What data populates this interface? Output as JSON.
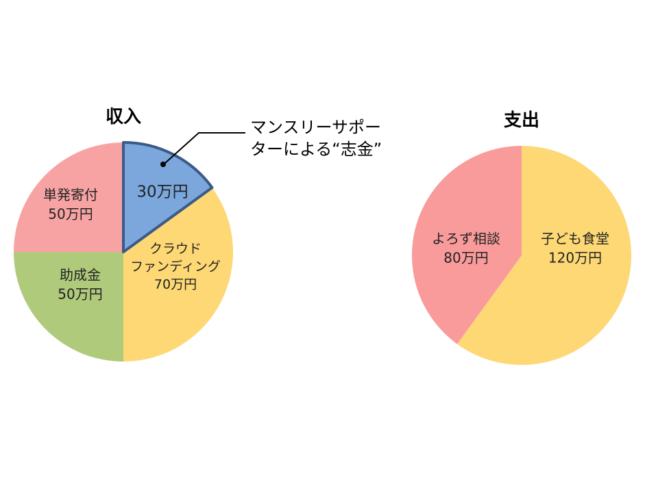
{
  "chart_data": [
    {
      "type": "pie",
      "title": "収入",
      "slices": [
        {
          "label": "30万円",
          "value": 30,
          "color": "#7BA7DC",
          "highlight": true
        },
        {
          "label_lines": [
            "クラウド",
            "ファンディング",
            "70万円"
          ],
          "value": 70,
          "color": "#FDD875"
        },
        {
          "label_lines": [
            "助成金",
            "50万円"
          ],
          "value": 50,
          "color": "#B0CA7C"
        },
        {
          "label_lines": [
            "単発寄付",
            "50万円"
          ],
          "value": 50,
          "color": "#F8A3A3"
        }
      ],
      "annotation": [
        "マンスリーサポー",
        "ターによる“志金”"
      ]
    },
    {
      "type": "pie",
      "title": "支出",
      "slices": [
        {
          "label_lines": [
            "子ども食堂",
            "120万円"
          ],
          "value": 120,
          "color": "#FDD875"
        },
        {
          "label_lines": [
            "よろず相談",
            "80万円"
          ],
          "value": 80,
          "color": "#F99B9B"
        }
      ]
    }
  ]
}
